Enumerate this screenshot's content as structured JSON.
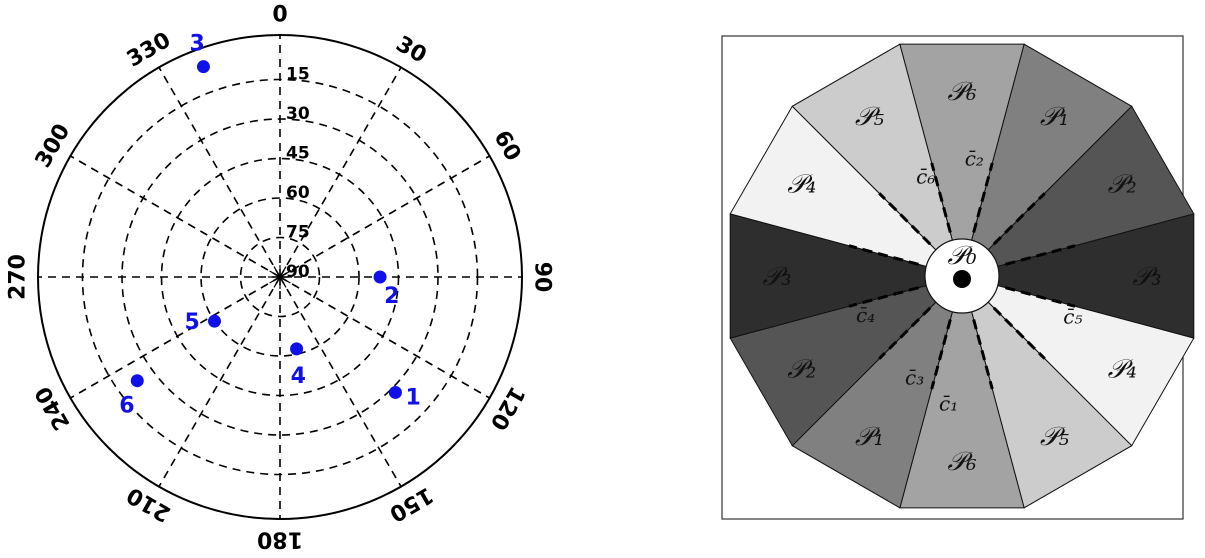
{
  "polar_plot": {
    "angle_labels": [
      "0",
      "30",
      "60",
      "90",
      "120",
      "150",
      "180",
      "210",
      "240",
      "270",
      "300",
      "330"
    ],
    "elevation_labels": [
      "15",
      "30",
      "45",
      "60",
      "75",
      "90"
    ],
    "points": [
      {
        "label": "1",
        "azimuth": 135,
        "elevation": 28
      },
      {
        "label": "2",
        "azimuth": 90,
        "elevation": 52
      },
      {
        "label": "3",
        "azimuth": 340,
        "elevation": 5
      },
      {
        "label": "4",
        "azimuth": 167,
        "elevation": 62
      },
      {
        "label": "5",
        "azimuth": 236,
        "elevation": 60
      },
      {
        "label": "6",
        "azimuth": 234,
        "elevation": 23
      }
    ],
    "point_color": "#1010e8"
  },
  "partition_diagram": {
    "regions": [
      {
        "label": "𝒫₁",
        "fill": "#808080"
      },
      {
        "label": "𝒫₂",
        "fill": "#555555"
      },
      {
        "label": "𝒫₃",
        "fill": "#2e2e2e"
      },
      {
        "label": "𝒫₄",
        "fill": "#f2f2f2"
      },
      {
        "label": "𝒫₅",
        "fill": "#cccccc"
      },
      {
        "label": "𝒫₆",
        "fill": "#a3a3a3"
      },
      {
        "label": "𝒫₁",
        "fill": "#808080"
      },
      {
        "label": "𝒫₂",
        "fill": "#555555"
      },
      {
        "label": "𝒫₃",
        "fill": "#2e2e2e"
      },
      {
        "label": "𝒫₄",
        "fill": "#f2f2f2"
      },
      {
        "label": "𝒫₅",
        "fill": "#cccccc"
      },
      {
        "label": "𝒫₆",
        "fill": "#a3a3a3"
      }
    ],
    "center_label": "𝒫₀",
    "cut_labels": [
      "c̄₁",
      "c̄₂",
      "c̄₃",
      "c̄₄",
      "c̄₅",
      "c̄₆"
    ]
  }
}
